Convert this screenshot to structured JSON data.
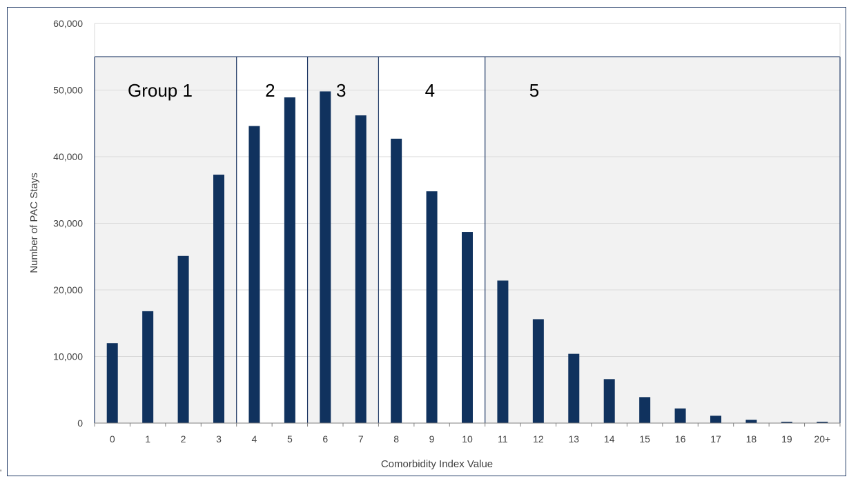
{
  "chart_data": {
    "type": "bar",
    "xlabel": "Comorbidity Index Value",
    "ylabel": "Number of PAC Stays",
    "ylim": [
      0,
      60000
    ],
    "yticks": [
      0,
      10000,
      20000,
      30000,
      40000,
      50000,
      60000
    ],
    "ytick_labels": [
      "0",
      "10,000",
      "20,000",
      "30,000",
      "40,000",
      "50,000",
      "60,000"
    ],
    "grid": true,
    "categories": [
      "0",
      "1",
      "2",
      "3",
      "4",
      "5",
      "6",
      "7",
      "8",
      "9",
      "10",
      "11",
      "12",
      "13",
      "14",
      "15",
      "16",
      "17",
      "18",
      "19",
      "20+"
    ],
    "values": [
      12000,
      16800,
      25100,
      37300,
      44600,
      48900,
      49800,
      46200,
      42700,
      34800,
      28700,
      21400,
      15600,
      10400,
      6600,
      3900,
      2200,
      1100,
      500,
      200,
      200
    ],
    "bar_color": "#10325e",
    "groups": [
      {
        "label": "Group 1",
        "categories": [
          "0",
          "1",
          "2",
          "3"
        ],
        "shaded": true
      },
      {
        "label": "2",
        "categories": [
          "4",
          "5"
        ],
        "shaded": false
      },
      {
        "label": "3",
        "categories": [
          "6",
          "7"
        ],
        "shaded": true
      },
      {
        "label": "4",
        "categories": [
          "8",
          "9",
          "10"
        ],
        "shaded": false
      },
      {
        "label": "5",
        "categories": [
          "11",
          "12",
          "13",
          "14",
          "15",
          "16",
          "17",
          "18",
          "19",
          "20+"
        ],
        "shaded": true
      }
    ],
    "group_band_top": 55000,
    "shade_color": "#f2f2f2",
    "grid_color": "#d9d9d9",
    "divider_color": "#1f3864"
  },
  "stray_mark": "'"
}
